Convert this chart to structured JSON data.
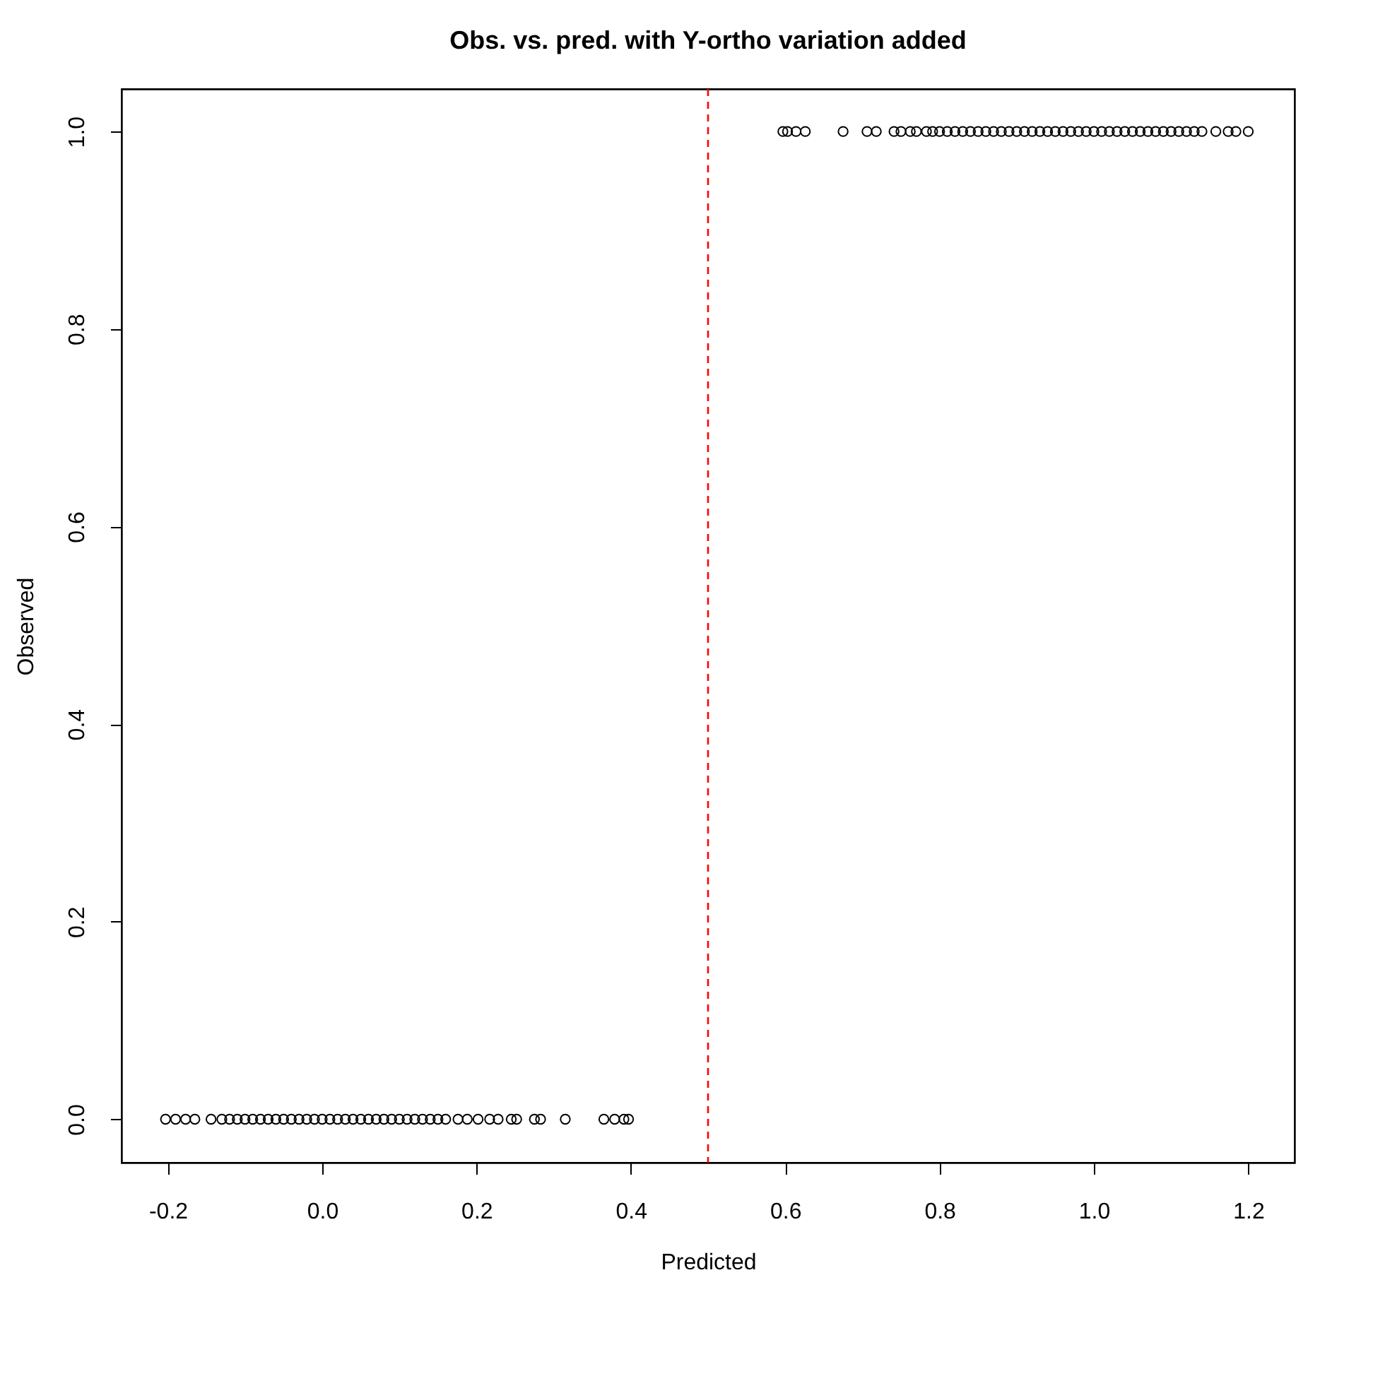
{
  "chart_data": {
    "type": "scatter",
    "title": "Obs. vs. pred. with Y-ortho variation added",
    "xlabel": "Predicted",
    "ylabel": "Observed",
    "xlim": [
      -0.26,
      1.26
    ],
    "ylim": [
      -0.044,
      1.043
    ],
    "xticks": [
      -0.2,
      {
        "value": 0,
        "label": "0.0"
      },
      0.2,
      0.4,
      0.6,
      0.8,
      {
        "value": 1,
        "label": "1.0"
      },
      1.2
    ],
    "yticks": [
      {
        "value": 0,
        "label": "0.0"
      },
      0.2,
      0.4,
      0.6,
      0.8,
      {
        "value": 1,
        "label": "1.0"
      }
    ],
    "grid": false,
    "marker": "circle",
    "ref_lines": [
      {
        "axis": "x",
        "value": 0.5,
        "color": "#ff0000",
        "line_style": "dashed"
      }
    ],
    "series": [
      {
        "color": "#000000",
        "x": [
          -0.203,
          -0.19,
          -0.177,
          -0.165,
          -0.144,
          -0.13,
          -0.12,
          -0.11,
          -0.1,
          -0.09,
          -0.08,
          -0.07,
          -0.06,
          -0.05,
          -0.04,
          -0.03,
          -0.02,
          -0.01,
          0.0,
          0.01,
          0.02,
          0.03,
          0.04,
          0.05,
          0.06,
          0.07,
          0.08,
          0.09,
          0.1,
          0.11,
          0.12,
          0.13,
          0.14,
          0.15,
          0.16,
          0.176,
          0.188,
          0.202,
          0.217,
          0.228,
          0.245,
          0.252,
          0.275,
          0.283,
          0.315,
          0.365,
          0.379,
          0.391,
          0.397
        ],
        "values": [
          0,
          0,
          0,
          0,
          0,
          0,
          0,
          0,
          0,
          0,
          0,
          0,
          0,
          0,
          0,
          0,
          0,
          0,
          0,
          0,
          0,
          0,
          0,
          0,
          0,
          0,
          0,
          0,
          0,
          0,
          0,
          0,
          0,
          0,
          0,
          0,
          0,
          0,
          0,
          0,
          0,
          0,
          0,
          0,
          0,
          0,
          0,
          0,
          0
        ]
      },
      {
        "color": "#000000",
        "x": [
          0.597,
          0.603,
          0.614,
          0.626,
          0.675,
          0.706,
          0.718,
          0.741,
          0.75,
          0.762,
          0.77,
          0.783,
          0.791,
          0.8,
          0.81,
          0.82,
          0.83,
          0.84,
          0.85,
          0.86,
          0.87,
          0.88,
          0.89,
          0.9,
          0.91,
          0.92,
          0.93,
          0.94,
          0.95,
          0.96,
          0.97,
          0.98,
          0.99,
          1.0,
          1.01,
          1.02,
          1.03,
          1.04,
          1.05,
          1.06,
          1.07,
          1.08,
          1.09,
          1.1,
          1.11,
          1.12,
          1.13,
          1.14,
          1.158,
          1.174,
          1.184,
          1.2
        ],
        "values": [
          1,
          1,
          1,
          1,
          1,
          1,
          1,
          1,
          1,
          1,
          1,
          1,
          1,
          1,
          1,
          1,
          1,
          1,
          1,
          1,
          1,
          1,
          1,
          1,
          1,
          1,
          1,
          1,
          1,
          1,
          1,
          1,
          1,
          1,
          1,
          1,
          1,
          1,
          1,
          1,
          1,
          1,
          1,
          1,
          1,
          1,
          1,
          1,
          1,
          1,
          1,
          1
        ]
      }
    ]
  }
}
